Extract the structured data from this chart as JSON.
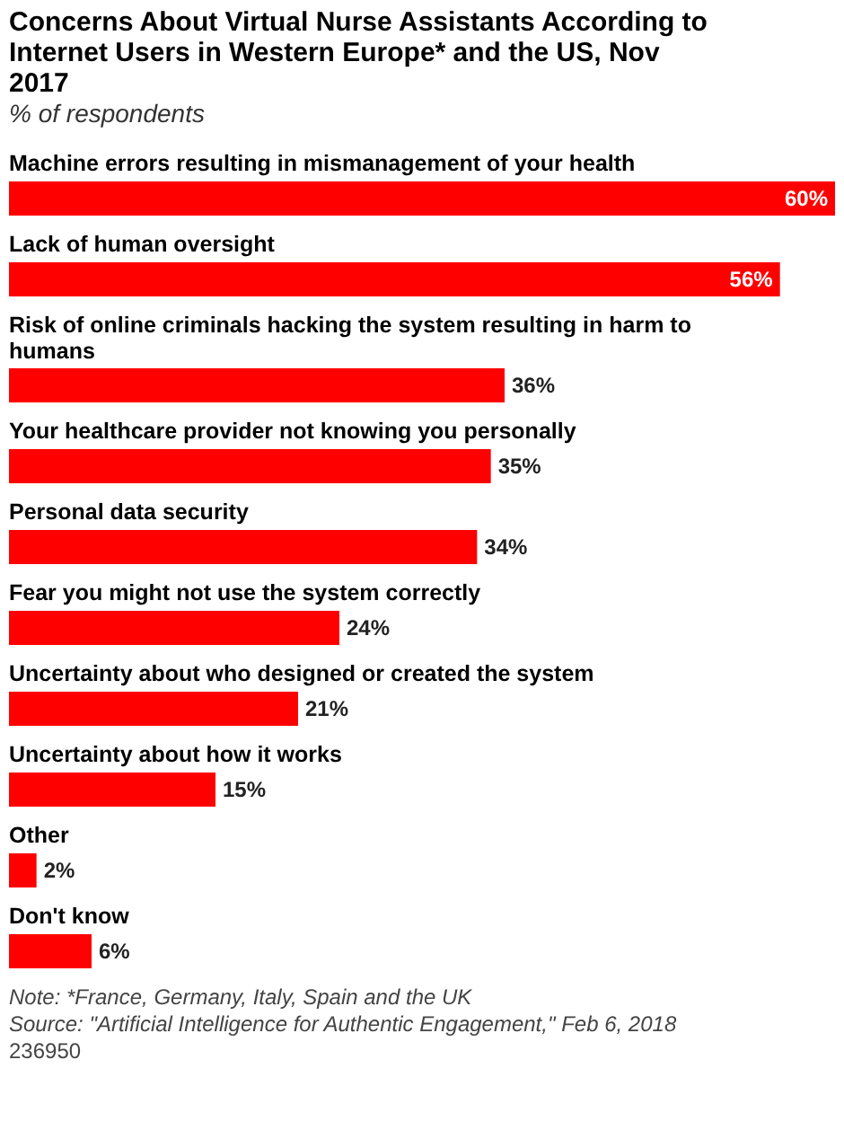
{
  "chart_data": {
    "type": "bar",
    "orientation": "horizontal",
    "title": "Concerns About Virtual Nurse Assistants According to Internet Users in Western Europe* and the US, Nov 2017",
    "subtitle": "% of respondents",
    "categories": [
      "Machine errors resulting in mismanagement of your health",
      "Lack of human oversight",
      "Risk of online criminals hacking the system resulting in harm to humans",
      "Your healthcare provider not knowing you personally",
      "Personal data security",
      "Fear you might not use the system correctly",
      "Uncertainty about who designed or created the system",
      "Uncertainty about how it works",
      "Other",
      "Don't know"
    ],
    "values": [
      60,
      56,
      36,
      35,
      34,
      24,
      21,
      15,
      2,
      6
    ],
    "value_labels": [
      "60%",
      "56%",
      "36%",
      "35%",
      "34%",
      "24%",
      "21%",
      "15%",
      "2%",
      "6%"
    ],
    "color": "#ff0000",
    "annotations": [
      "Note: *France, Germany, Italy, Spain and the UK",
      "Source: \"Artificial Intelligence for Authentic Engagement,\" Feb 6, 2018",
      "236950"
    ]
  }
}
